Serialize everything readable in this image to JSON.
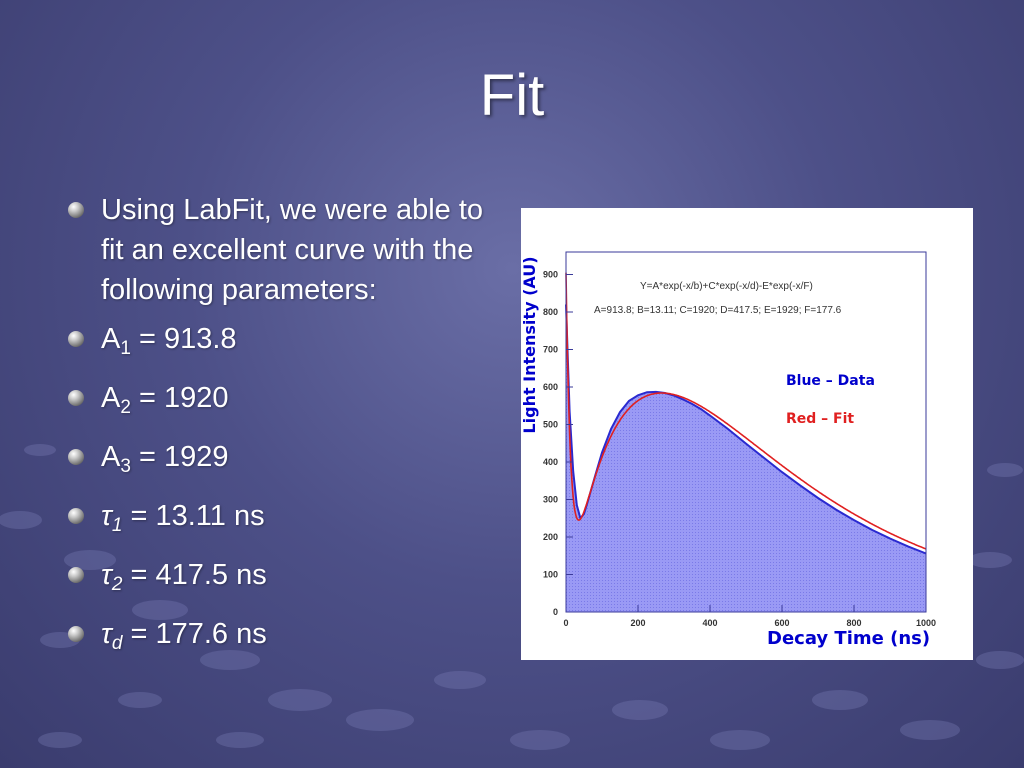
{
  "slide": {
    "title": "Fit",
    "bullets": [
      {
        "text": "Using LabFit, we were able to fit an excellent curve with the following parameters:"
      },
      {
        "base": "A",
        "sub": "1",
        "eq": " = 913.8"
      },
      {
        "base": "A",
        "sub": "2",
        "eq": " = 1920"
      },
      {
        "base": "A",
        "sub": "3",
        "eq": " = 1929"
      },
      {
        "base": "τ",
        "sub": "1",
        "eq": " = 13.11 ns"
      },
      {
        "base": "τ",
        "sub": "2",
        "eq": " = 417.5 ns"
      },
      {
        "base": "τ",
        "sub": "d",
        "eq": " = 177.6 ns"
      }
    ]
  },
  "chart_data": {
    "type": "area",
    "xlabel": "Decay Time (ns)",
    "ylabel": "Light Intensity (AU)",
    "xlim": [
      0,
      1000
    ],
    "ylim": [
      0,
      960
    ],
    "x_ticks": [
      "0",
      "200",
      "400",
      "600",
      "800",
      "1000"
    ],
    "y_ticks": [
      "0",
      "100",
      "200",
      "300",
      "400",
      "500",
      "600",
      "700",
      "800",
      "900"
    ],
    "formula": "Y=A*exp(-x/b)+C*exp(-x/d)-E*exp(-x/F)",
    "fit_params": "A=913.8;  B=13.11;  C=1920;  D=417.5;  E=1929;  F=177.6",
    "legend": [
      "Blue – Data",
      "Red – Fit"
    ],
    "grid": false,
    "colors": {
      "data_fill": "#8b8bf2",
      "data_line": "#2a2ad0",
      "fit": "#e02020",
      "axis_text": "#0000cc",
      "tick_text": "#333333"
    },
    "series": [
      {
        "name": "Blue – Data",
        "x": [
          0,
          10,
          20,
          30,
          40,
          50,
          60,
          80,
          100,
          125,
          150,
          175,
          200,
          225,
          250,
          275,
          300,
          325,
          350,
          375,
          400,
          450,
          500,
          550,
          600,
          650,
          700,
          750,
          800,
          850,
          900,
          950,
          1000
        ],
        "y": [
          820,
          535,
          375,
          285,
          250,
          262,
          293,
          360,
          425,
          488,
          533,
          563,
          578,
          586,
          587,
          584,
          577,
          567,
          555,
          541,
          524,
          488,
          449,
          411,
          373,
          338,
          304,
          273,
          245,
          219,
          196,
          175,
          156
        ]
      }
    ],
    "fit": {
      "name": "Red – Fit",
      "A": 913.8,
      "B": 13.11,
      "C": 1920,
      "D": 417.5,
      "E": 1929,
      "F": 177.6
    }
  }
}
